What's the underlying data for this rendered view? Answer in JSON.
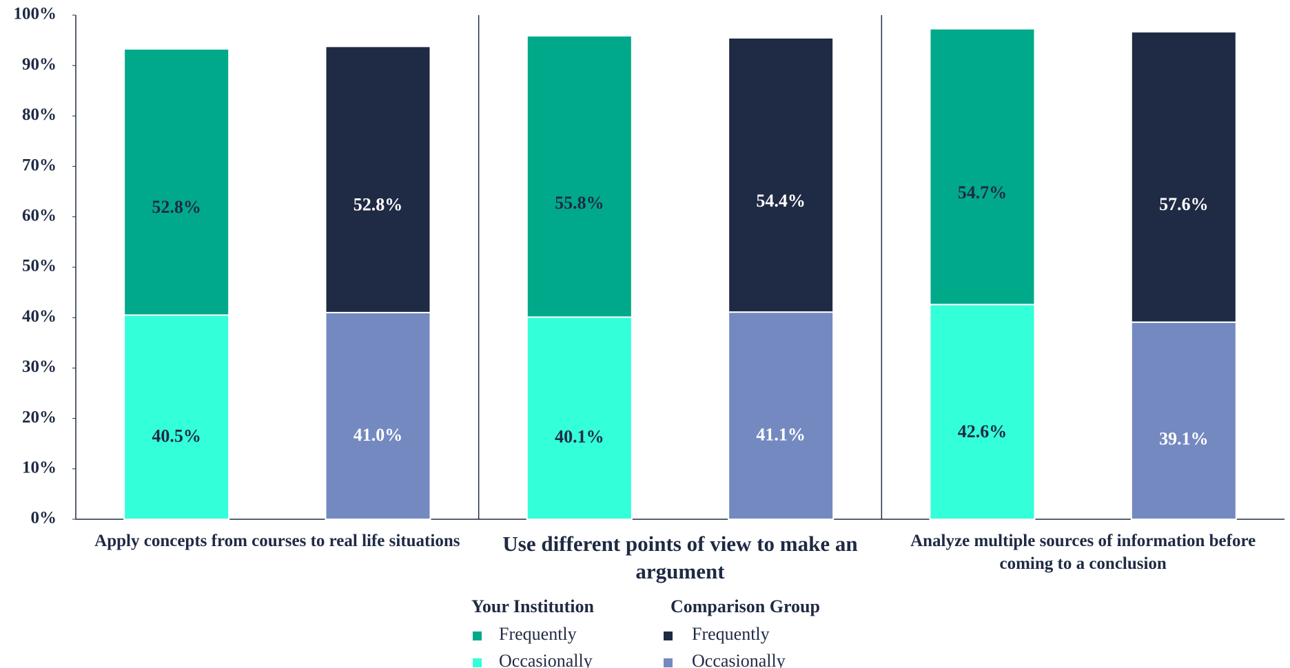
{
  "chart_data": {
    "type": "stacked-bar",
    "categories": [
      "Apply concepts from courses to real life situations",
      "Use different points of view to make an argument",
      "Analyze multiple sources of information before coming to a conclusion"
    ],
    "groups": [
      {
        "name": "Your Institution",
        "series": [
          {
            "name": "Frequently",
            "color": "#00a98a",
            "label_color": "#1f2a44",
            "values": [
              52.8,
              55.8,
              54.7
            ],
            "value_labels": [
              "52.8%",
              "55.8%",
              "54.7%"
            ]
          },
          {
            "name": "Occasionally",
            "color": "#33ffd9",
            "label_color": "#1f2a44",
            "values": [
              40.5,
              40.1,
              42.6
            ],
            "value_labels": [
              "40.5%",
              "40.1%",
              "42.6%"
            ]
          }
        ]
      },
      {
        "name": "Comparison Group",
        "series": [
          {
            "name": "Frequently",
            "color": "#1f2a44",
            "label_color": "#ffffff",
            "values": [
              52.8,
              54.4,
              57.6
            ],
            "value_labels": [
              "52.8%",
              "54.4%",
              "57.6%"
            ]
          },
          {
            "name": "Occasionally",
            "color": "#7389c0",
            "label_color": "#ffffff",
            "values": [
              41.0,
              41.1,
              39.1
            ],
            "value_labels": [
              "41.0%",
              "41.1%",
              "39.1%"
            ]
          }
        ]
      }
    ],
    "ylim": [
      0,
      100
    ],
    "yticks": [
      {
        "value": 0,
        "label": "0%"
      },
      {
        "value": 10,
        "label": "10%"
      },
      {
        "value": 20,
        "label": "20%"
      },
      {
        "value": 30,
        "label": "30%"
      },
      {
        "value": 40,
        "label": "40%"
      },
      {
        "value": 50,
        "label": "50%"
      },
      {
        "value": 60,
        "label": "60%"
      },
      {
        "value": 70,
        "label": "70%"
      },
      {
        "value": 80,
        "label": "80%"
      },
      {
        "value": 90,
        "label": "90%"
      },
      {
        "value": 100,
        "label": "100%"
      }
    ],
    "grid": false,
    "legend": "bottom"
  }
}
